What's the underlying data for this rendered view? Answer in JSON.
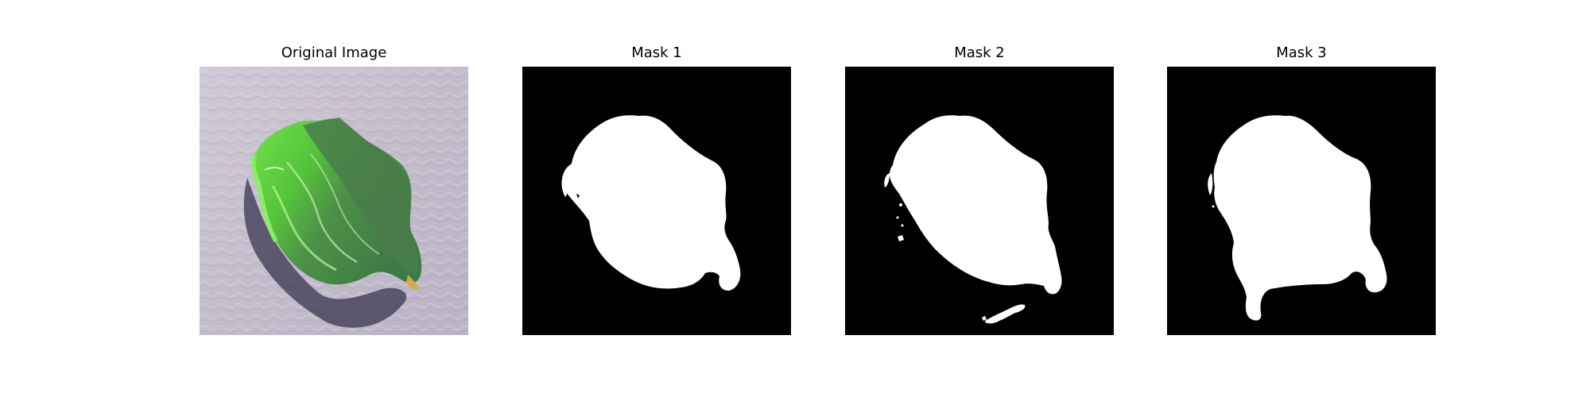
{
  "figure": {
    "panels": [
      {
        "title": "Original Image"
      },
      {
        "title": "Mask 1"
      },
      {
        "title": "Mask 2"
      },
      {
        "title": "Mask 3"
      }
    ]
  },
  "colors": {
    "background": "#ffffff",
    "mask_background": "#000000",
    "mask_foreground": "#ffffff",
    "rock_light_green": "#5fd83a",
    "rock_dark_green": "#3f7f3a",
    "surface_lavender": "#c6c0d0"
  }
}
